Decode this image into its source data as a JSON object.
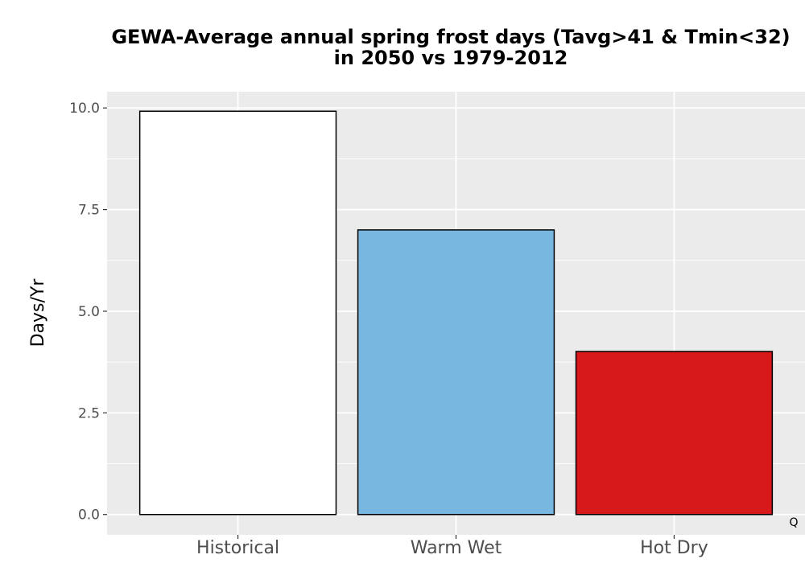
{
  "chart_data": {
    "type": "bar",
    "title": "GEWA-Average annual spring frost days (Tavg>41 & Tmin<32)",
    "title_line2": "in 2050 vs 1979-2012",
    "xlabel": "",
    "ylabel": "Days/Yr",
    "categories": [
      "Historical",
      "Warm Wet",
      "Hot Dry"
    ],
    "values": [
      9.92,
      7.0,
      4.01
    ],
    "colors": [
      "#ffffff",
      "#78b7e0",
      "#d7191c"
    ],
    "ylim": [
      -0.5,
      10.4
    ],
    "yticks": [
      0.0,
      2.5,
      5.0,
      7.5,
      10.0
    ],
    "ytick_labels": [
      "0.0",
      "2.5",
      "5.0",
      "7.5",
      "10.0"
    ],
    "grid": true,
    "panel_background": "#ebebeb",
    "corner_note": "Q"
  }
}
